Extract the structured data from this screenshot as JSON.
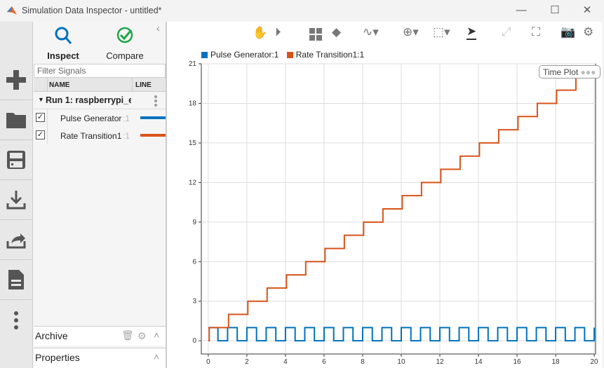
{
  "window": {
    "title": "Simulation Data Inspector - untitled*",
    "minimize": "—",
    "maximize": "☐",
    "close": "✕"
  },
  "sidebar_icons": [
    "add-icon",
    "open-folder-icon",
    "save-icon",
    "import-icon",
    "export-icon",
    "report-icon",
    "more-icon"
  ],
  "tabs": {
    "inspect": "Inspect",
    "compare": "Compare",
    "collapse": "‹"
  },
  "filter": {
    "placeholder": "Filter Signals"
  },
  "table": {
    "headers": [
      "NAME",
      "LINE"
    ],
    "run": "Run 1: raspberrypi_e",
    "signals": [
      {
        "name": "Pulse Generator",
        "suffix": ":1",
        "checked": true,
        "color": "#0072bd"
      },
      {
        "name": "Rate Transition1",
        "suffix": ":1",
        "checked": true,
        "color": "#d95319"
      }
    ]
  },
  "sections": {
    "archive": "Archive",
    "properties": "Properties"
  },
  "toolbar": [
    "pan-icon",
    "replay-icon",
    "layout-icon",
    "clear-icon",
    "cursor-wave-icon",
    "zoom-icon",
    "fit-icon",
    "select-icon",
    "expand-icon",
    "fullscreen-icon",
    "camera-icon",
    "gear-icon"
  ],
  "plot_label": "Time Plot",
  "chart_data": {
    "type": "line",
    "legend_position": "top-left",
    "grid": true,
    "xlim": [
      -0.36,
      20.07
    ],
    "ylim": [
      -1,
      21
    ],
    "xticks": [
      0,
      2,
      4,
      6,
      8,
      10,
      12,
      14,
      16,
      18,
      20
    ],
    "yticks": [
      0,
      3,
      6,
      9,
      12,
      15,
      18,
      21
    ],
    "series": [
      {
        "name": "Pulse Generator:1",
        "color": "#0072bd",
        "kind": "pulse",
        "period": 1,
        "pulse_width": 0.5,
        "amplitude": 1,
        "t_start": 0,
        "t_end": 20
      },
      {
        "name": "Rate Transition1:1",
        "color": "#d95319",
        "kind": "step",
        "t_end": 20,
        "steps": [
          [
            0,
            0
          ],
          [
            0.05,
            1
          ],
          [
            1.05,
            2
          ],
          [
            2.05,
            3
          ],
          [
            3.05,
            4
          ],
          [
            4.05,
            5
          ],
          [
            5.05,
            6
          ],
          [
            6.05,
            7
          ],
          [
            7.05,
            8
          ],
          [
            8.05,
            9
          ],
          [
            9.05,
            10
          ],
          [
            10.05,
            11
          ],
          [
            11.05,
            12
          ],
          [
            12.05,
            13
          ],
          [
            13.05,
            14
          ],
          [
            14.05,
            15
          ],
          [
            15.05,
            16
          ],
          [
            16.05,
            17
          ],
          [
            17.05,
            18
          ],
          [
            18.05,
            19
          ],
          [
            19.05,
            20
          ]
        ]
      }
    ]
  }
}
